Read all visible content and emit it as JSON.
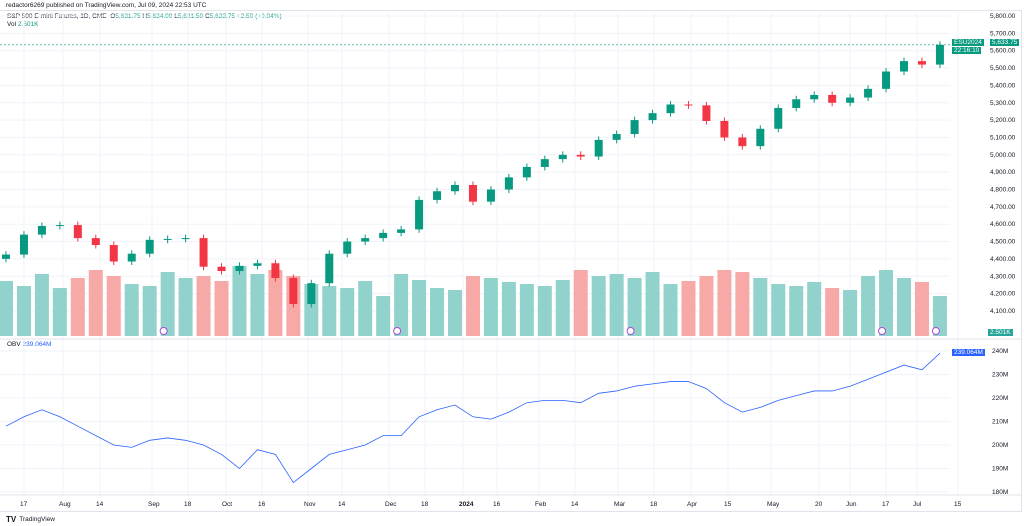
{
  "header": {
    "published": "redactor6269 published on TradingView.com, Jul 09, 2024 22:53 UTC"
  },
  "legend": {
    "symbol": "S&P 500 E-mini Futures, 1D, CME",
    "o_label": "O",
    "open": "5,631.75",
    "h_label": "H",
    "high": "5,634.00",
    "l_label": "L",
    "low": "5,631.50",
    "c_label": "C",
    "close": "5,633.75",
    "change": "+2.50 (+0.04%)",
    "vol_label": "Vol",
    "vol_value": "2.501K"
  },
  "obv_legend": {
    "label": "OBV",
    "value": "239.064M"
  },
  "tags": {
    "symbol": "ESU2024",
    "price": "5,633.75",
    "countdown": "22:16:10",
    "volume": "2.501K",
    "obv": "239.064M"
  },
  "footer": {
    "brand": "TradingView"
  },
  "colors": {
    "up": "#089981",
    "down": "#f23645",
    "vol_up": "#92d2cc",
    "vol_down": "#f7a9a7",
    "obv": "#2962ff",
    "event": "#a64dd6"
  },
  "chart_data": [
    {
      "type": "candlestick",
      "resolution_shown": "1D (approximated weekly)",
      "price_axis_ticks": [
        "5,800.00",
        "5,700.00",
        "5,600.00",
        "5,500.00",
        "5,400.00",
        "5,300.00",
        "5,200.00",
        "5,100.00",
        "5,000.00",
        "4,900.00",
        "4,800.00",
        "4,700.00",
        "4,600.00",
        "4,500.00",
        "4,400.00",
        "4,300.00",
        "4,200.00",
        "4,100.00"
      ],
      "ylim": [
        4000,
        5850
      ],
      "grid": true,
      "x_ticks": [
        "17",
        "Aug",
        "14",
        "Sep",
        "18",
        "Oct",
        "16",
        "Nov",
        "14",
        "Dec",
        "18",
        "2024",
        "16",
        "Feb",
        "14",
        "Mar",
        "18",
        "Apr",
        "15",
        "May",
        "20",
        "Jun",
        "17",
        "Jul",
        "15"
      ],
      "dates": [
        "2023-07-10",
        "2023-07-17",
        "2023-07-24",
        "2023-07-31",
        "2023-08-07",
        "2023-08-14",
        "2023-08-21",
        "2023-08-28",
        "2023-09-04",
        "2023-09-11",
        "2023-09-18",
        "2023-09-25",
        "2023-10-02",
        "2023-10-09",
        "2023-10-16",
        "2023-10-23",
        "2023-10-30",
        "2023-11-06",
        "2023-11-13",
        "2023-11-20",
        "2023-11-27",
        "2023-12-04",
        "2023-12-11",
        "2023-12-18",
        "2023-12-25",
        "2024-01-01",
        "2024-01-08",
        "2024-01-15",
        "2024-01-22",
        "2024-01-29",
        "2024-02-05",
        "2024-02-12",
        "2024-02-19",
        "2024-02-26",
        "2024-03-04",
        "2024-03-11",
        "2024-03-18",
        "2024-03-25",
        "2024-04-01",
        "2024-04-08",
        "2024-04-15",
        "2024-04-22",
        "2024-04-29",
        "2024-05-06",
        "2024-05-13",
        "2024-05-20",
        "2024-05-27",
        "2024-06-03",
        "2024-06-10",
        "2024-06-17",
        "2024-06-24",
        "2024-07-01",
        "2024-07-08"
      ],
      "close": [
        4425,
        4540,
        4590,
        4595,
        4520,
        4480,
        4385,
        4430,
        4510,
        4515,
        4520,
        4355,
        4330,
        4360,
        4375,
        4290,
        4140,
        4260,
        4430,
        4500,
        4520,
        4550,
        4570,
        4740,
        4790,
        4826,
        4730,
        4800,
        4870,
        4930,
        4975,
        5000,
        4990,
        5086,
        5120,
        5200,
        5240,
        5290,
        5285,
        5195,
        5100,
        5050,
        5150,
        5270,
        5320,
        5345,
        5300,
        5330,
        5380,
        5480,
        5540,
        5520,
        5633.75
      ],
      "volume_relative": [
        55,
        50,
        62,
        48,
        58,
        66,
        60,
        52,
        50,
        64,
        58,
        60,
        55,
        70,
        62,
        66,
        60,
        52,
        50,
        48,
        55,
        40,
        62,
        56,
        48,
        46,
        60,
        58,
        54,
        52,
        50,
        56,
        66,
        60,
        62,
        58,
        64,
        52,
        55,
        60,
        66,
        64,
        58,
        52,
        50,
        54,
        48,
        46,
        60,
        66,
        58,
        54,
        40
      ],
      "current_price": 5633.75,
      "event_markers_week_index": [
        9,
        22,
        35,
        49,
        52
      ]
    },
    {
      "type": "line",
      "name": "OBV",
      "y_axis_ticks": [
        "240M",
        "230M",
        "220M",
        "210M",
        "200M",
        "190M",
        "180M"
      ],
      "ylim": [
        178,
        243
      ],
      "values_millions": [
        208,
        212,
        215,
        212,
        208,
        204,
        200,
        199,
        202,
        203,
        202,
        200,
        196,
        190,
        198,
        196,
        184,
        190,
        196,
        198,
        200,
        204,
        204,
        212,
        215,
        217,
        212,
        211,
        214,
        218,
        219,
        219,
        218,
        222,
        223,
        225,
        226,
        227,
        227,
        224,
        218,
        214,
        216,
        219,
        221,
        223,
        223,
        225,
        228,
        231,
        234,
        232,
        239.064
      ]
    }
  ]
}
